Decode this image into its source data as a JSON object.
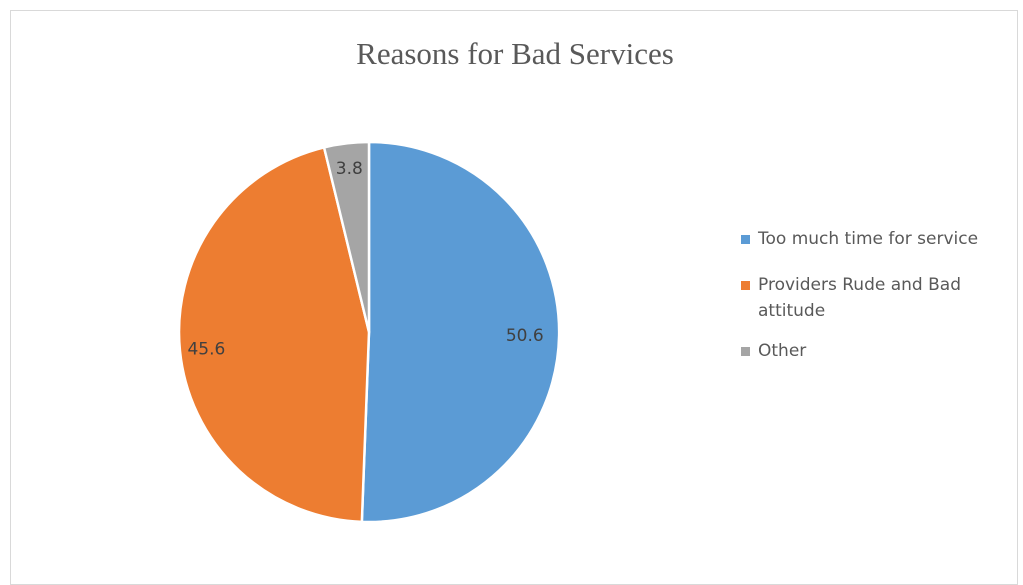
{
  "chart_data": {
    "type": "pie",
    "title": "Reasons for Bad Services",
    "categories": [
      "Too much time for service",
      "Providers Rude and Bad attitude",
      "Other"
    ],
    "values": [
      50.6,
      45.6,
      3.8
    ],
    "value_labels": [
      "50.6",
      "45.6",
      "3.8"
    ],
    "colors": [
      "#5b9bd5",
      "#ed7d31",
      "#a5a5a5"
    ],
    "legend_position": "right",
    "start_angle": "top, clockwise"
  }
}
